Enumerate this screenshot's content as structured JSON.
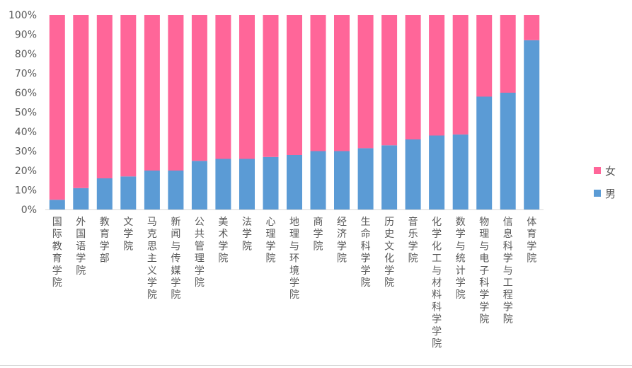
{
  "chart_data": {
    "type": "bar",
    "stacked": true,
    "percent": true,
    "categories": [
      "国际教育学院",
      "外国语学院",
      "教育学部",
      "文学院",
      "马克思主义学院",
      "新闻与传媒学院",
      "公共管理学院",
      "美术学院",
      "法学院",
      "心理学院",
      "地理与环境学院",
      "商学院",
      "经济学院",
      "生命科学学院",
      "历史文化学院",
      "音乐学院",
      "化学化工与材料科学学院",
      "数学与统计学院",
      "物理与电子科学学院",
      "信息科学与工程学院",
      "体育学院"
    ],
    "series": [
      {
        "name": "男",
        "color": "#5b9bd5",
        "values": [
          5,
          11,
          16,
          17,
          20,
          20,
          25,
          26,
          26,
          27,
          28,
          30,
          30,
          31.5,
          33,
          36,
          38,
          38.5,
          58,
          60,
          87
        ]
      },
      {
        "name": "女",
        "color": "#ff6699",
        "values": [
          95,
          89,
          84,
          83,
          80,
          80,
          75,
          74,
          74,
          73,
          72,
          70,
          70,
          68.5,
          67,
          64,
          62,
          61.5,
          42,
          40,
          13
        ]
      }
    ],
    "yticks": [
      "0%",
      "10%",
      "20%",
      "30%",
      "40%",
      "50%",
      "60%",
      "70%",
      "80%",
      "90%",
      "100%"
    ],
    "ylim": [
      0,
      100
    ],
    "legend": "right",
    "legend_order": [
      "女",
      "男"
    ],
    "grid": false
  }
}
